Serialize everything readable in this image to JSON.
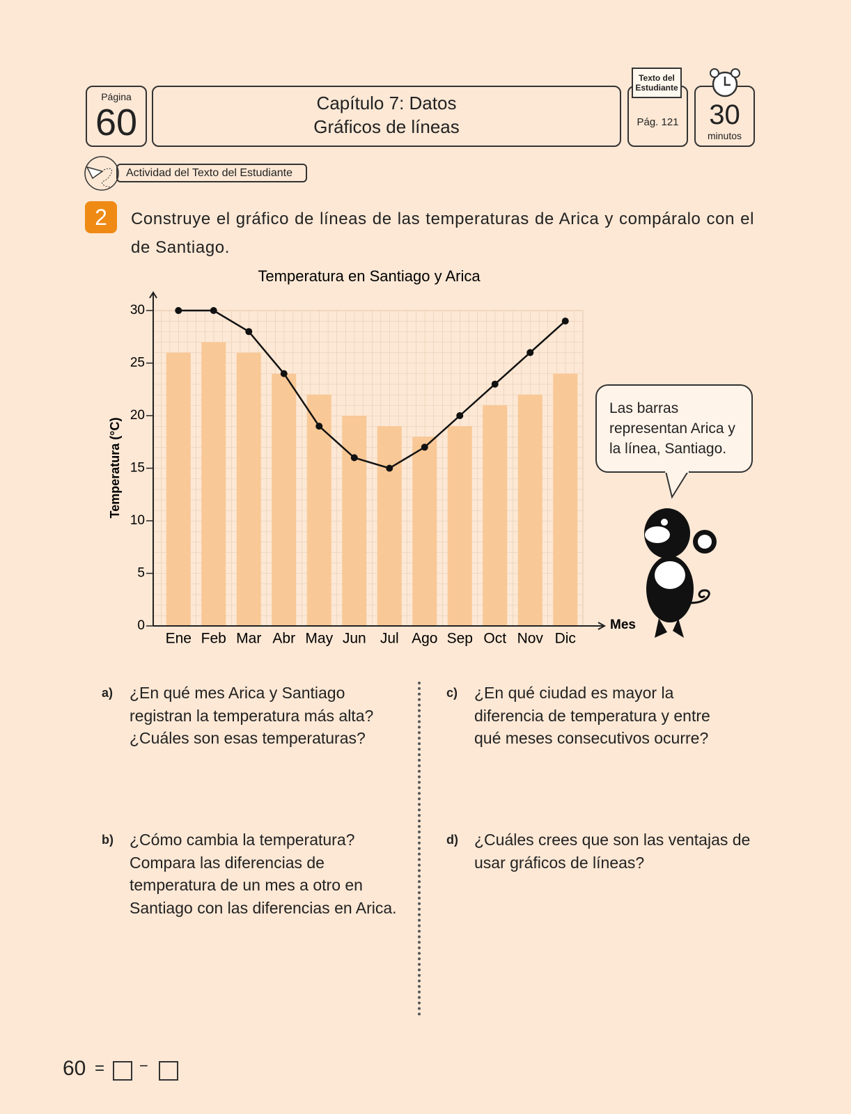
{
  "header": {
    "page_label": "Página",
    "page_number": "60",
    "chapter": "Capítulo 7: Datos",
    "subtitle": "Gráficos de líneas",
    "book_label": "Texto del Estudiante",
    "book_page": "Pág. 121",
    "time": "30",
    "time_unit": "minutos"
  },
  "activity_tag": "Actividad del Texto del Estudiante",
  "exercise": {
    "number": "2",
    "instruction": "Construye el gráfico de líneas de las temperaturas de Arica y compáralo con el de Santiago."
  },
  "chart_data": {
    "type": "bar",
    "title": "Temperatura en Santiago y Arica",
    "y_label": "Temperatura (°C)",
    "x_label": "Mes",
    "categories": [
      "Ene",
      "Feb",
      "Mar",
      "Abr",
      "May",
      "Jun",
      "Jul",
      "Ago",
      "Sep",
      "Oct",
      "Nov",
      "Dic"
    ],
    "series": [
      {
        "type": "bar",
        "color": "#f8c896",
        "values": [
          26,
          27,
          26,
          24,
          22,
          20,
          19,
          18,
          19,
          21,
          22,
          24
        ]
      },
      {
        "type": "line",
        "color": "#111111",
        "values": [
          30,
          30,
          28,
          24,
          19,
          16,
          15,
          17,
          20,
          23,
          26,
          29
        ]
      }
    ],
    "ylim": [
      0,
      30
    ],
    "yticks": [
      0,
      5,
      10,
      15,
      20,
      25,
      30
    ],
    "grid": true
  },
  "speech_bubble": "Las barras representan Arica y la línea, Santiago.",
  "questions": [
    {
      "label": "a)",
      "text": "¿En qué mes Arica y Santiago registran la temperatura más alta? ¿Cuáles son esas temperaturas?"
    },
    {
      "label": "b)",
      "text": "¿Cómo cambia la temperatura? Compara las diferencias de temperatura de un mes a otro en Santiago con las diferencias en Arica."
    },
    {
      "label": "c)",
      "text": "¿En qué ciudad es mayor la diferencia de temperatura y entre qué meses consecutivos ocurre?"
    },
    {
      "label": "d)",
      "text": "¿Cuáles crees que son las ventajas de usar gráficos de líneas?"
    }
  ],
  "footer": {
    "page_number": "60",
    "equals": "=",
    "operator": "−"
  }
}
